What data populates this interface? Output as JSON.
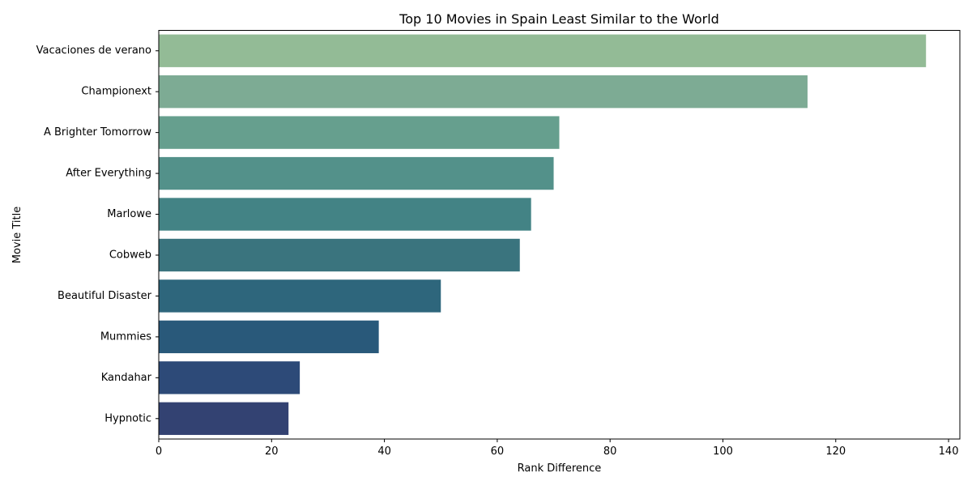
{
  "chart_data": {
    "type": "bar",
    "orientation": "horizontal",
    "title": "Top 10 Movies in Spain Least Similar to the World",
    "xlabel": "Rank Difference",
    "ylabel": "Movie Title",
    "xlim": [
      0,
      142
    ],
    "xticks": [
      0,
      20,
      40,
      60,
      80,
      100,
      120,
      140
    ],
    "grid": false,
    "legend": "none",
    "categories": [
      "Vacaciones de verano",
      "Championext",
      "A Brighter Tomorrow",
      "After Everything",
      "Marlowe",
      "Cobweb",
      "Beautiful Disaster",
      "Mummies",
      "Kandahar",
      "Hypnotic"
    ],
    "values": [
      136,
      115,
      71,
      70,
      66,
      64,
      50,
      39,
      25,
      23
    ],
    "colors": [
      "#93bb96",
      "#7dab94",
      "#669f8e",
      "#53918a",
      "#438385",
      "#3a747e",
      "#2e667c",
      "#29597a",
      "#2d4a78",
      "#334272"
    ]
  }
}
